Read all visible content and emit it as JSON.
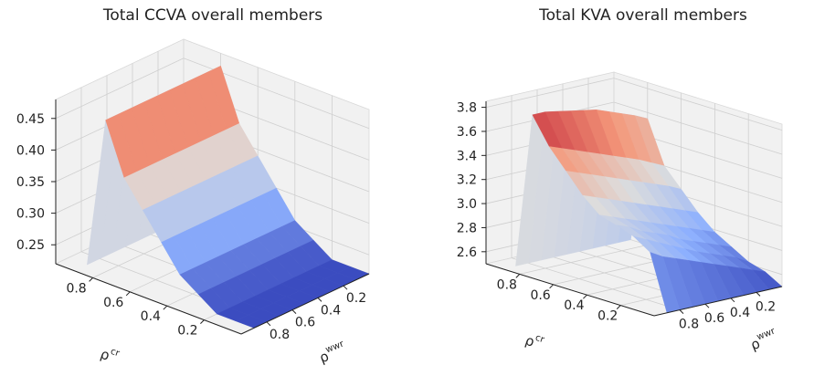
{
  "chart_data": [
    {
      "type": "surface3d",
      "title": "Total CCVA overall members",
      "xlabel": "ρ",
      "xlabel_sup": "wwr",
      "ylabel": "ρ",
      "ylabel_sup": "cr",
      "colormap": "coolwarm",
      "x_ticks": [
        "0.2",
        "0.4",
        "0.6",
        "0.8"
      ],
      "y_ticks": [
        "0.2",
        "0.4",
        "0.6",
        "0.8"
      ],
      "z_ticks": [
        "0.25",
        "0.30",
        "0.35",
        "0.40",
        "0.45"
      ],
      "x": [
        0.0,
        0.1,
        0.2,
        0.3,
        0.4,
        0.5,
        0.6,
        0.7,
        0.8,
        0.9
      ],
      "y": [
        0.0,
        0.1,
        0.2,
        0.3,
        0.4,
        0.5,
        0.6,
        0.7,
        0.8,
        0.9
      ],
      "zlim": [
        0.22,
        0.48
      ],
      "z": [
        [
          0.22,
          0.22,
          0.22,
          0.22,
          0.22,
          0.22,
          0.22,
          0.22,
          0.22,
          0.22
        ],
        [
          0.22,
          0.22,
          0.22,
          0.22,
          0.22,
          0.22,
          0.22,
          0.22,
          0.22,
          0.22
        ],
        [
          0.22,
          0.22,
          0.22,
          0.22,
          0.22,
          0.22,
          0.22,
          0.22,
          0.22,
          0.22
        ],
        [
          0.24,
          0.24,
          0.24,
          0.24,
          0.24,
          0.24,
          0.24,
          0.24,
          0.24,
          0.24
        ],
        [
          0.26,
          0.26,
          0.26,
          0.26,
          0.26,
          0.26,
          0.26,
          0.26,
          0.26,
          0.26
        ],
        [
          0.3,
          0.3,
          0.3,
          0.3,
          0.3,
          0.3,
          0.3,
          0.3,
          0.3,
          0.3
        ],
        [
          0.34,
          0.34,
          0.34,
          0.34,
          0.34,
          0.34,
          0.34,
          0.34,
          0.34,
          0.34
        ],
        [
          0.38,
          0.38,
          0.38,
          0.38,
          0.38,
          0.38,
          0.38,
          0.38,
          0.38,
          0.38
        ],
        [
          0.46,
          0.46,
          0.46,
          0.46,
          0.46,
          0.46,
          0.46,
          0.46,
          0.46,
          0.46
        ],
        [
          0.22,
          0.22,
          0.22,
          0.22,
          0.22,
          0.22,
          0.22,
          0.22,
          0.22,
          0.22
        ]
      ]
    },
    {
      "type": "surface3d",
      "title": "Total KVA overall members",
      "xlabel": "ρ",
      "xlabel_sup": "wwr",
      "ylabel": "ρ",
      "ylabel_sup": "cr",
      "colormap": "coolwarm",
      "x_ticks": [
        "0.2",
        "0.4",
        "0.6",
        "0.8"
      ],
      "y_ticks": [
        "0.2",
        "0.4",
        "0.6",
        "0.8"
      ],
      "z_ticks": [
        "2.6",
        "2.8",
        "3.0",
        "3.2",
        "3.4",
        "3.6",
        "3.8"
      ],
      "x": [
        0.0,
        0.1,
        0.2,
        0.3,
        0.4,
        0.5,
        0.6,
        0.7,
        0.8,
        0.9
      ],
      "y": [
        0.0,
        0.1,
        0.2,
        0.3,
        0.4,
        0.5,
        0.6,
        0.7,
        0.8,
        0.9
      ],
      "zlim": [
        2.5,
        3.85
      ],
      "z": [
        [
          2.5,
          2.5,
          2.5,
          2.5,
          2.5,
          2.5,
          2.5,
          2.5,
          2.5,
          2.5
        ],
        [
          2.58,
          2.62,
          2.66,
          2.7,
          2.74,
          2.78,
          2.82,
          2.86,
          2.9,
          2.96
        ],
        [
          2.62,
          2.68,
          2.72,
          2.76,
          2.8,
          2.85,
          2.9,
          2.95,
          3.0,
          3.05
        ],
        [
          2.7,
          2.74,
          2.78,
          2.82,
          2.86,
          2.92,
          2.96,
          3.0,
          3.06,
          3.1
        ],
        [
          2.78,
          2.82,
          2.86,
          2.9,
          2.94,
          2.98,
          3.02,
          3.06,
          3.1,
          3.14
        ],
        [
          2.9,
          2.94,
          2.98,
          3.02,
          3.06,
          3.1,
          3.14,
          3.18,
          3.22,
          3.26
        ],
        [
          3.05,
          3.1,
          3.14,
          3.18,
          3.22,
          3.26,
          3.3,
          3.34,
          3.38,
          3.42
        ],
        [
          3.2,
          3.25,
          3.3,
          3.34,
          3.38,
          3.42,
          3.46,
          3.5,
          3.54,
          3.58
        ],
        [
          3.55,
          3.6,
          3.64,
          3.68,
          3.72,
          3.74,
          3.76,
          3.78,
          3.8,
          3.8
        ],
        [
          2.5,
          2.5,
          2.5,
          2.5,
          2.5,
          2.5,
          2.5,
          2.5,
          2.5,
          2.5
        ]
      ]
    }
  ]
}
